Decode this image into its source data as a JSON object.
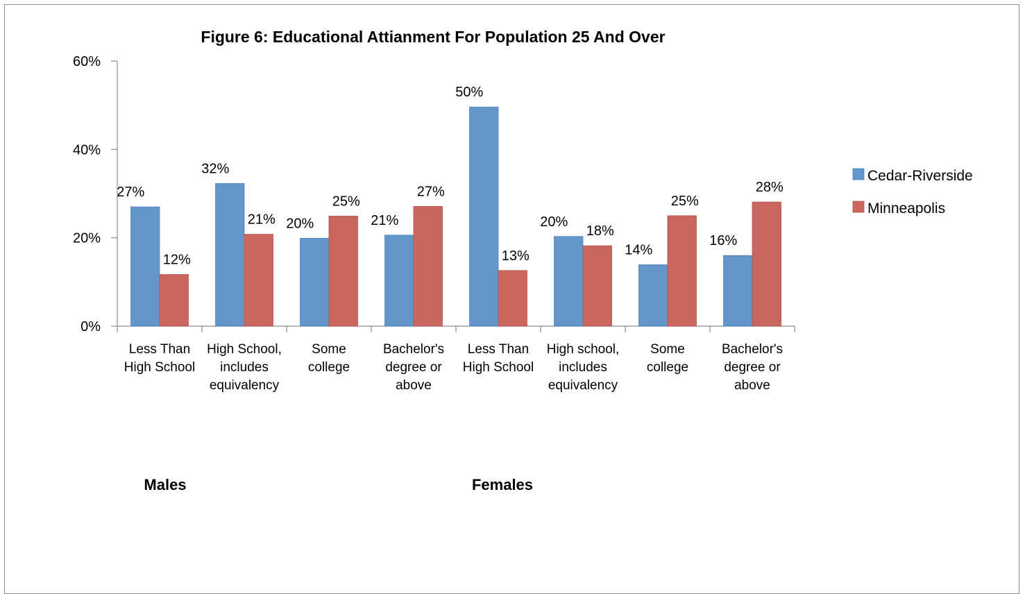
{
  "chart_data": {
    "type": "bar",
    "title": "Figure 6: Educational Attianment For Population 25 And Over",
    "categories": [
      [
        "Less Than",
        "High School"
      ],
      [
        "High School,",
        "includes",
        "equivalency"
      ],
      [
        "Some",
        "college"
      ],
      [
        "Bachelor's",
        "degree or",
        "above"
      ],
      [
        "Less Than",
        "High School"
      ],
      [
        "High school,",
        "includes",
        "equivalency"
      ],
      [
        "Some",
        "college"
      ],
      [
        "Bachelor's",
        "degree or",
        "above"
      ]
    ],
    "groups": [
      "Males",
      "Females"
    ],
    "series": [
      {
        "name": "Cedar-Riverside",
        "color": "#6397cc",
        "values": [
          27,
          32.3,
          19.9,
          20.6,
          49.6,
          20.3,
          13.9,
          16.0
        ],
        "labels": [
          "27%",
          "32%",
          "20%",
          "21%",
          "50%",
          "20%",
          "14%",
          "16%"
        ]
      },
      {
        "name": "Minneapolis",
        "color": "#cb665f",
        "values": [
          11.7,
          20.8,
          24.9,
          27.1,
          12.6,
          18.2,
          25.0,
          28.1
        ],
        "labels": [
          "12%",
          "21%",
          "25%",
          "27%",
          "13%",
          "18%",
          "25%",
          "28%"
        ]
      }
    ],
    "ylim": [
      0,
      60
    ],
    "yticks": [
      0,
      20,
      40,
      60
    ],
    "ytick_labels": [
      "0%",
      "20%",
      "40%",
      "60%"
    ],
    "legend_position": "right",
    "grid": false
  }
}
